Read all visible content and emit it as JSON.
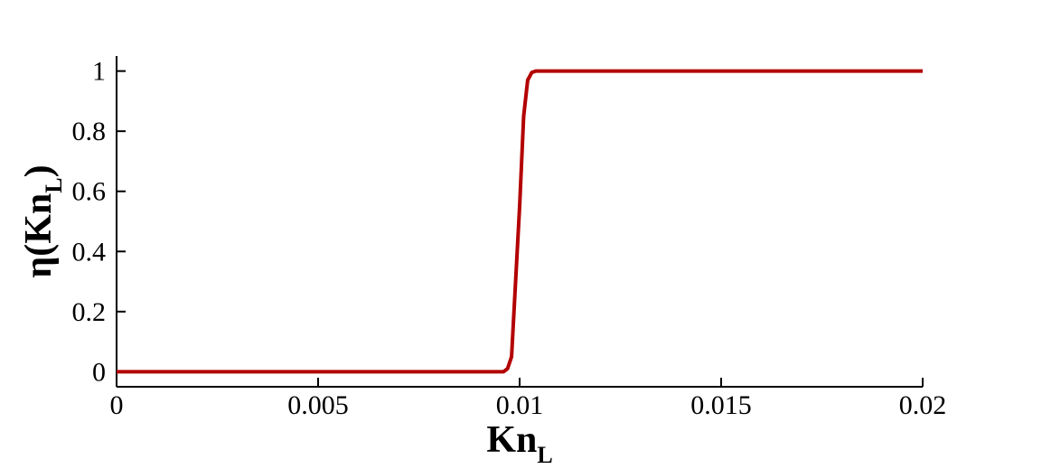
{
  "chart_data": {
    "type": "line",
    "x_label": "Kn",
    "x_label_subscript": "L",
    "y_label": "η(Kn",
    "y_label_subscript": "L",
    "y_label_end": ")",
    "x": [
      0,
      0.009,
      0.0096,
      0.0097,
      0.0098,
      0.0099,
      0.01,
      0.0101,
      0.0102,
      0.0103,
      0.0104,
      0.011,
      0.02
    ],
    "series": [
      {
        "name": "η",
        "color": "#b30000",
        "values": [
          0,
          0,
          0,
          0.01,
          0.05,
          0.3,
          0.55,
          0.85,
          0.97,
          0.995,
          1,
          1,
          1
        ]
      }
    ],
    "xlim": [
      0,
      0.02
    ],
    "xticks": [
      0,
      0.005,
      0.01,
      0.015,
      0.02
    ],
    "ylim": [
      -0.05,
      1.05
    ],
    "yticks": [
      0,
      0.2,
      0.4,
      0.6,
      0.8,
      1
    ]
  }
}
